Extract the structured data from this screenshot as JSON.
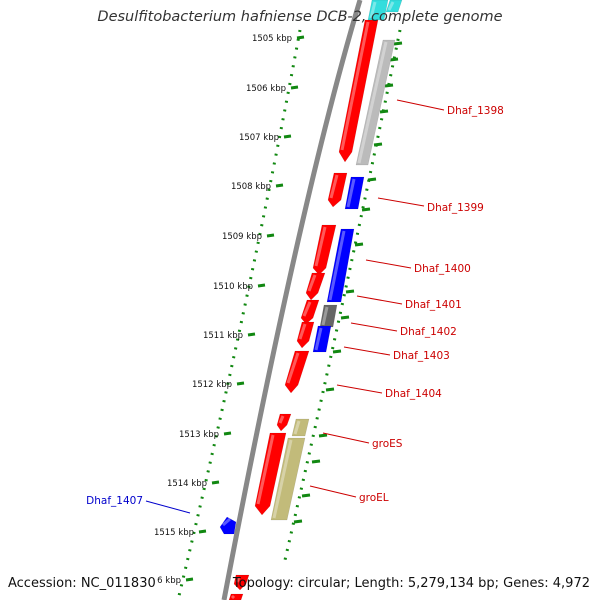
{
  "title": "Desulfitobacterium hafniense DCB-2, complete genome",
  "accession_text": "Accession: NC_011830",
  "topology_text": "Topology: circular; Length: 5,279,134 bp; Genes: 4,972",
  "colors": {
    "forward_gene": "#ff0000",
    "reverse_gene": "#0000ff",
    "other_gene": "#666666",
    "faded_gene": "#bbbbbb",
    "chaperone_gene": "#c2bb7a",
    "cyan_gene": "#33dddd",
    "backbone": "#888888",
    "tick_track": "#118811",
    "label_red": "#cc0000",
    "label_blue": "#0000cc"
  },
  "scale": {
    "ticks": [
      "1505 kbp",
      "1506 kbp",
      "1507 kbp",
      "1508 kbp",
      "1509 kbp",
      "1510 kbp",
      "1511 kbp",
      "1512 kbp",
      "1513 kbp",
      "1514 kbp",
      "1515 kbp",
      "6 kbp"
    ]
  },
  "gene_labels": [
    {
      "name": "Dhaf_1398",
      "color": "label_red"
    },
    {
      "name": "Dhaf_1399",
      "color": "label_red"
    },
    {
      "name": "Dhaf_1400",
      "color": "label_red"
    },
    {
      "name": "Dhaf_1401",
      "color": "label_red"
    },
    {
      "name": "Dhaf_1402",
      "color": "label_red"
    },
    {
      "name": "Dhaf_1403",
      "color": "label_red"
    },
    {
      "name": "Dhaf_1404",
      "color": "label_red"
    },
    {
      "name": "groES",
      "color": "label_red"
    },
    {
      "name": "groEL",
      "color": "label_red"
    },
    {
      "name": "Dhaf_1407",
      "color": "label_blue"
    }
  ]
}
